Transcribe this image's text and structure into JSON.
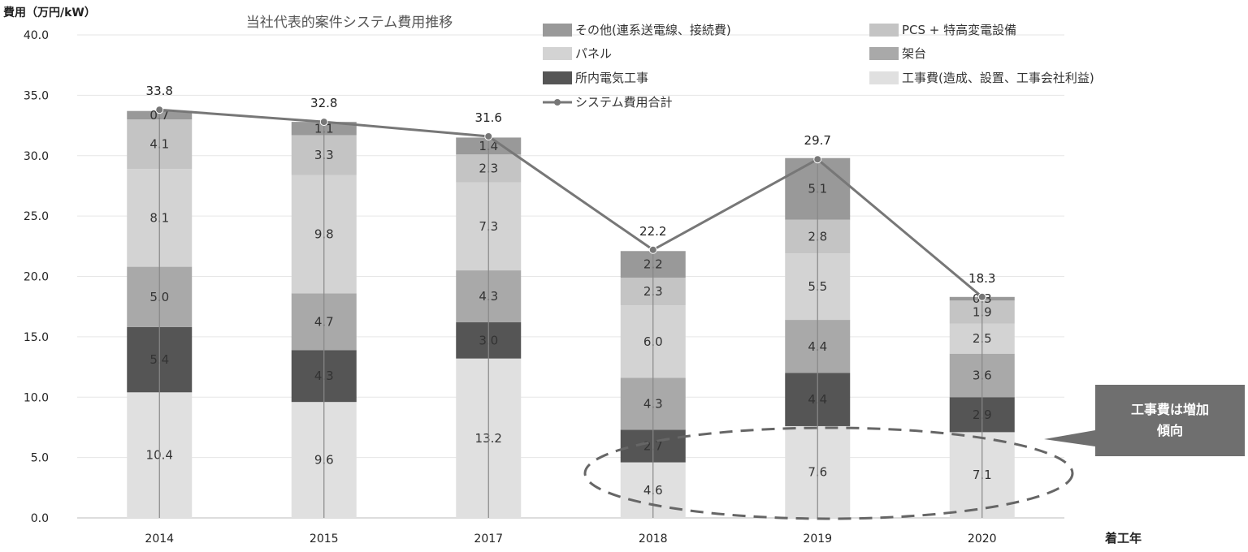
{
  "chart_data": {
    "type": "bar",
    "title": "当社代表的案件システム費用推移",
    "ylabel": "費用（万円/kW）",
    "xlabel": "着工年",
    "ylim": [
      0,
      40
    ],
    "yticks": [
      "0.0",
      "5.0",
      "10.0",
      "15.0",
      "20.0",
      "25.0",
      "30.0",
      "35.0",
      "40.0"
    ],
    "categories": [
      "2014",
      "2015",
      "2017",
      "2018",
      "2019",
      "2020"
    ],
    "series": [
      {
        "name": "工事費(造成、設置、工事会社利益)",
        "values": [
          10.4,
          9.6,
          13.2,
          4.6,
          7.6,
          7.1
        ],
        "labels": [
          "10.4",
          "9.6",
          "13.2",
          "4.6",
          "7.6",
          "7.1"
        ],
        "color": "#e0e0e0"
      },
      {
        "name": "所内電気工事",
        "values": [
          5.4,
          4.3,
          3.0,
          2.7,
          4.4,
          2.9
        ],
        "labels": [
          "5.4",
          "4.3",
          "3.0",
          "2.7",
          "4.4",
          "2.9"
        ],
        "color": "#555555"
      },
      {
        "name": "架台",
        "values": [
          5.0,
          4.7,
          4.3,
          4.3,
          4.4,
          3.6
        ],
        "labels": [
          "5.0",
          "4.7",
          "4.3",
          "4.3",
          "4.4",
          "3.6"
        ],
        "color": "#a9a9a9"
      },
      {
        "name": "パネル",
        "values": [
          8.1,
          9.8,
          7.3,
          6.0,
          5.5,
          2.5
        ],
        "labels": [
          "8.1",
          "9.8",
          "7.3",
          "6.0",
          "5.5",
          "2.5"
        ],
        "color": "#d3d3d3"
      },
      {
        "name": "PCS + 特高変電設備",
        "values": [
          4.1,
          3.3,
          2.3,
          2.3,
          2.8,
          1.9
        ],
        "labels": [
          "4.1",
          "3.3",
          "2.3",
          "2.3",
          "2.8",
          "1.9"
        ],
        "color": "#c4c4c4"
      },
      {
        "name": "その他(連系送電線、接続費)",
        "values": [
          0.7,
          1.1,
          1.4,
          2.2,
          5.1,
          0.3
        ],
        "labels": [
          "0.7",
          "1.1",
          "1.4",
          "2.2",
          "5.1",
          "0.3"
        ],
        "color": "#999999"
      }
    ],
    "line": {
      "name": "システム費用合計",
      "values": [
        33.8,
        32.8,
        31.6,
        22.2,
        29.7,
        18.3
      ],
      "labels": [
        "33.8",
        "32.8",
        "31.6",
        "22.2",
        "29.7",
        "18.3"
      ],
      "color": "#777777"
    },
    "legend_position": "top-right",
    "grid": true,
    "annotation": {
      "text_lines": [
        "工事費は増加",
        "傾向"
      ],
      "color": "#6f6f6f"
    }
  }
}
